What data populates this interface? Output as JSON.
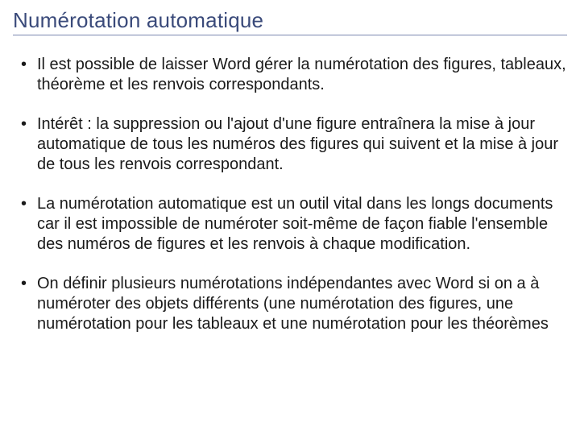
{
  "title": "Numérotation automatique",
  "title_color": "#3a4a7a",
  "title_underline_color": "#7a88b0",
  "title_fontsize": 26,
  "body_fontsize": 20,
  "body_color": "#1a1a1a",
  "background_color": "#ffffff",
  "bullets": [
    "Il est possible de laisser Word gérer la numérotation des figures, tableaux, théorème et les renvois correspondants.",
    "Intérêt : la suppression ou l'ajout d'une figure entraînera la mise à jour automatique de tous les numéros des figures qui suivent et la mise à jour de tous les renvois correspondant.",
    "La numérotation automatique est un outil vital dans les longs documents car il est impossible de numéroter soit-même de façon fiable l'ensemble des numéros de figures et les renvois à chaque modification.",
    "On définir plusieurs numérotations indépendantes avec Word si on a à numéroter des objets différents (une numérotation des figures, une numérotation pour les tableaux et une numérotation pour les théorèmes"
  ]
}
